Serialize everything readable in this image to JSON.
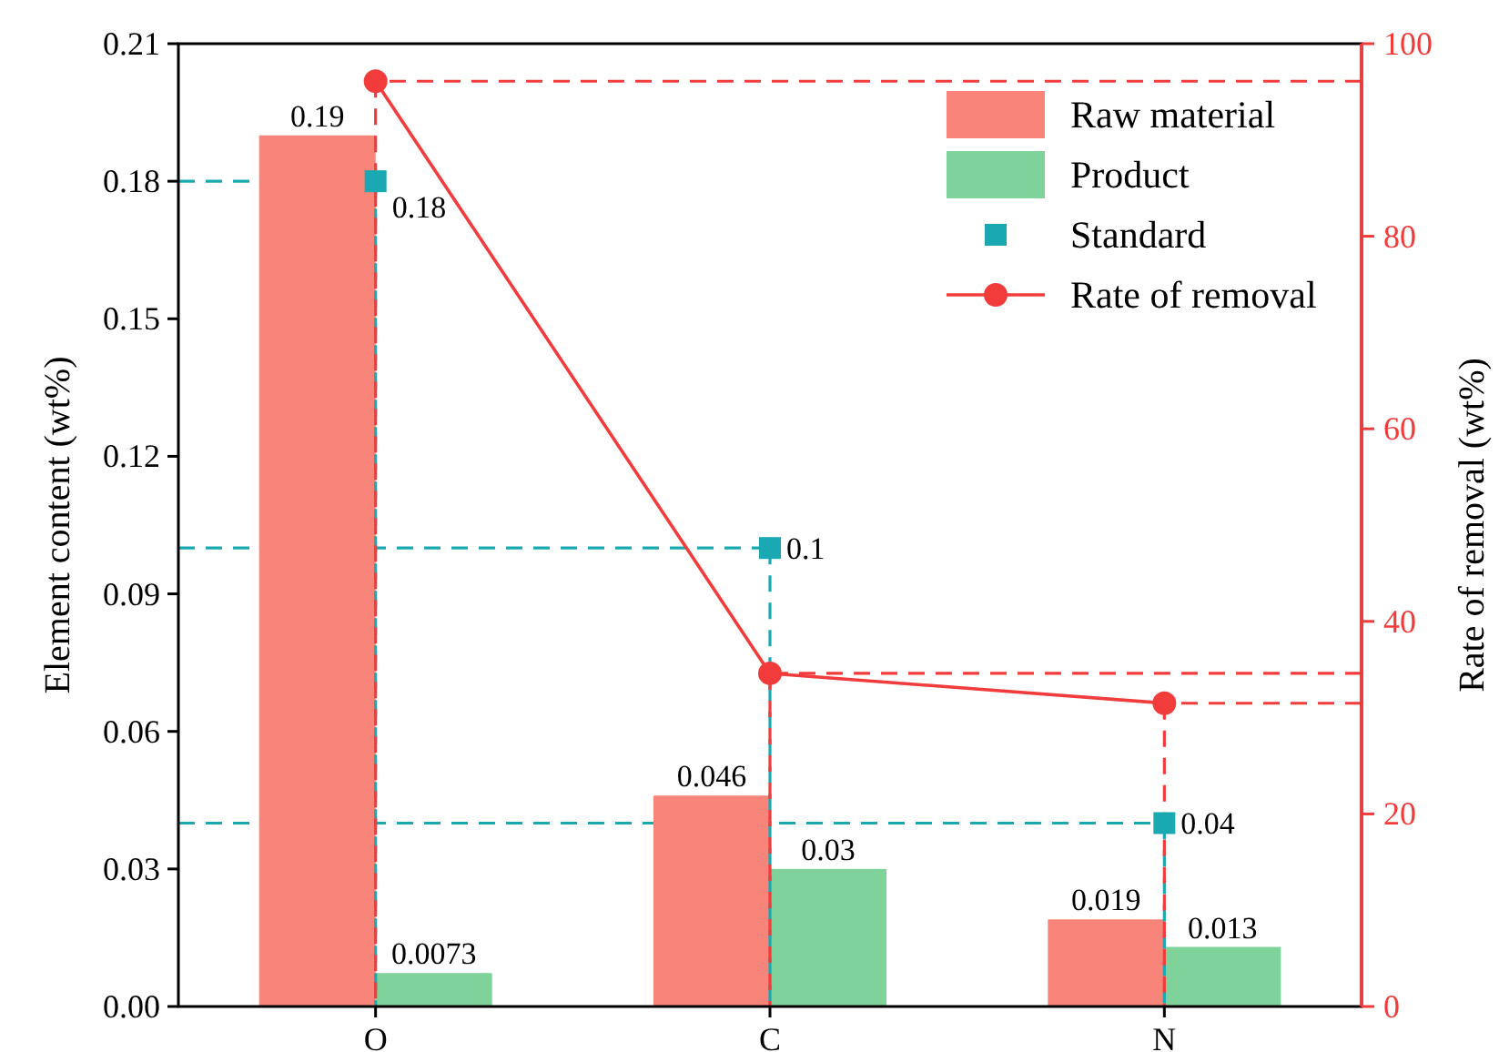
{
  "chart_data": {
    "type": "bar",
    "categories": [
      "O",
      "C",
      "N"
    ],
    "ylabel": "Element content (wt%)",
    "y2label": "Rate of removal (wt%)",
    "ylim": [
      0,
      0.21
    ],
    "yticks": [
      "0.00",
      "0.03",
      "0.06",
      "0.09",
      "0.12",
      "0.15",
      "0.18",
      "0.21"
    ],
    "y2lim": [
      0,
      100
    ],
    "y2ticks": [
      0,
      20,
      40,
      60,
      80,
      100
    ],
    "legend": "top right",
    "ref_lines": [
      {
        "axis": "y",
        "value": 0.18,
        "color": "#1aa9b2",
        "line_style": "dashed"
      },
      {
        "axis": "y",
        "value": 0.1,
        "color": "#1aa9b2",
        "line_style": "dashed"
      },
      {
        "axis": "y",
        "value": 0.04,
        "color": "#1aa9b2",
        "line_style": "dashed"
      },
      {
        "axis": "y2",
        "value": 96.1,
        "color": "#f23b3b",
        "line_style": "dashed"
      },
      {
        "axis": "y2",
        "value": 34.6,
        "color": "#f23b3b",
        "line_style": "dashed"
      },
      {
        "axis": "y2",
        "value": 31.5,
        "color": "#f23b3b",
        "line_style": "dashed"
      }
    ],
    "grid": false,
    "series": [
      {
        "name": "Raw material",
        "color": "#f8847a",
        "values": [
          0.19,
          0.046,
          0.019
        ],
        "value_labels": [
          "0.19",
          "0.046",
          "0.019"
        ]
      },
      {
        "name": "Product",
        "color": "#7fd39a",
        "values": [
          0.0073,
          0.03,
          0.013
        ],
        "value_labels": [
          "0.0073",
          "0.03",
          "0.013"
        ]
      },
      {
        "name": "Standard",
        "type": "scatter",
        "color": "#1aa9b2",
        "marker": "square",
        "values": [
          0.18,
          0.1,
          0.04
        ],
        "value_labels": [
          "0.18",
          "0.1",
          "0.04"
        ]
      },
      {
        "name": "Rate of removal",
        "type": "line",
        "axis": "y2",
        "color": "#f23b3b",
        "marker": "circle",
        "values": [
          96.1,
          34.6,
          31.5
        ]
      }
    ]
  }
}
